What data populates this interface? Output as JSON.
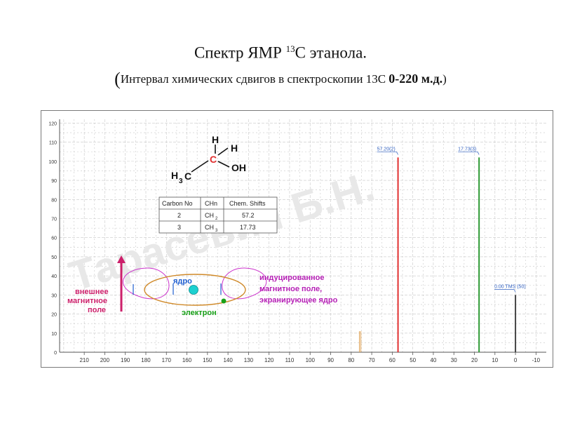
{
  "title": {
    "line1_pre": "Спектр ЯМР ",
    "line1_sup": "13",
    "line1_post": "С этанола.",
    "line2_open": "(",
    "line2_text": "Интервал химических сдвигов  в спектроскопии 13С  ",
    "line2_range": "0-220 м.д.",
    "line2_close": ")"
  },
  "watermark": "Тарасевич Б.Н.",
  "molecule": {
    "h_top": "H",
    "h_right": "H",
    "oh": "OH",
    "h3": "H",
    "sub3": "3",
    "c_left": "C",
    "c_center": "C"
  },
  "shift_table": {
    "headers": [
      "Carbon No",
      "CHn",
      "Chem. Shifts"
    ],
    "rows": [
      {
        "carbon": "2",
        "chn": "CH",
        "chn_sub": "2",
        "shift": "57.2"
      },
      {
        "carbon": "3",
        "chn": "CH",
        "chn_sub": "3",
        "shift": "17.73"
      }
    ]
  },
  "diagram": {
    "external_field_label": [
      "внешнее",
      "магнитное",
      "поле"
    ],
    "nucleus_label": "ядро",
    "electron_label": "электрон",
    "induced_field_label": [
      "индуцированное",
      "магнитное поле,",
      "экранирующее ядро"
    ]
  },
  "colors": {
    "peak_57": "#e23030",
    "peak_17": "#2e9a35",
    "peak_tms": "#444444",
    "grid": "#c8c8c8",
    "label_red": "#cc1f6a",
    "label_blue": "#1f5fd0",
    "label_purple": "#b51fb5",
    "electron_green": "#18a018",
    "nucleus_cyan": "#1cd0d0"
  },
  "chart_data": {
    "type": "line",
    "x_reversed": true,
    "xlim": [
      -15,
      222
    ],
    "ylim": [
      0,
      122
    ],
    "x_ticks": [
      210,
      200,
      190,
      180,
      170,
      160,
      150,
      140,
      130,
      120,
      110,
      100,
      90,
      80,
      70,
      60,
      50,
      40,
      30,
      20,
      10,
      0,
      -10
    ],
    "y_ticks": [
      0,
      10,
      20,
      30,
      40,
      50,
      60,
      70,
      80,
      90,
      100,
      110,
      120
    ],
    "grid": true,
    "peaks": [
      {
        "x": 57.2,
        "height": 102,
        "label": "57.20(2)",
        "color_key": "peak_57"
      },
      {
        "x": 17.73,
        "height": 102,
        "label": "17.73(3)",
        "color_key": "peak_17"
      },
      {
        "x": 0.0,
        "height": 30,
        "label": "0.00 TMS (50)",
        "color_key": "peak_tms"
      }
    ]
  }
}
